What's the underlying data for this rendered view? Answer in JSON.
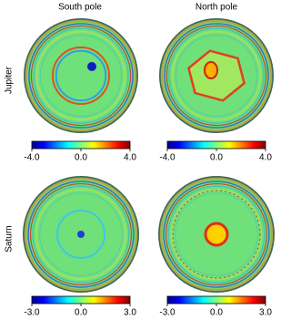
{
  "figure": {
    "columns": [
      "South pole",
      "North pole"
    ],
    "rows": [
      "Jupiter",
      "Saturn"
    ]
  },
  "chart_data": [
    {
      "type": "polar-map",
      "colormap": "jet",
      "clim": [
        -4,
        4
      ],
      "cticks": [
        {
          "value": -4,
          "label": "-4.0"
        },
        {
          "value": 0,
          "label": "0.0"
        },
        {
          "value": 4,
          "label": "4.0"
        }
      ]
    },
    {
      "type": "polar-map",
      "colormap": "jet",
      "clim": [
        -4,
        4
      ],
      "cticks": [
        {
          "value": -4,
          "label": "-4.0"
        },
        {
          "value": 0,
          "label": "0.0"
        },
        {
          "value": 4,
          "label": "4.0"
        }
      ]
    },
    {
      "type": "polar-map",
      "colormap": "jet",
      "clim": [
        -3,
        3
      ],
      "cticks": [
        {
          "value": -3,
          "label": "-3.0"
        },
        {
          "value": 0,
          "label": "0.0"
        },
        {
          "value": 3,
          "label": "3.0"
        }
      ]
    },
    {
      "type": "polar-map",
      "colormap": "jet",
      "clim": [
        -3,
        3
      ],
      "cticks": [
        {
          "value": -3,
          "label": "-3.0"
        },
        {
          "value": 0,
          "label": "0.0"
        },
        {
          "value": 3,
          "label": "3.0"
        }
      ]
    }
  ]
}
